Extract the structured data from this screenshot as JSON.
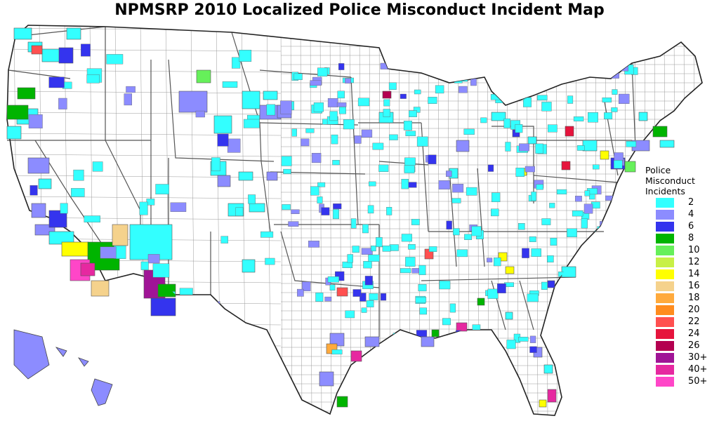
{
  "title": "NPMSRP 2010 Localized Police Misconduct Incident Map",
  "legend": {
    "title_lines": [
      "Police",
      "Misconduct",
      "Incidents"
    ],
    "items": [
      {
        "label": "2",
        "color": "#33ffff"
      },
      {
        "label": "4",
        "color": "#8c8cff"
      },
      {
        "label": "6",
        "color": "#3434ee"
      },
      {
        "label": "8",
        "color": "#00b400"
      },
      {
        "label": "10",
        "color": "#66f05a"
      },
      {
        "label": "12",
        "color": "#c8f046"
      },
      {
        "label": "14",
        "color": "#ffff00"
      },
      {
        "label": "16",
        "color": "#f5d28c"
      },
      {
        "label": "18",
        "color": "#ffaa3c"
      },
      {
        "label": "20",
        "color": "#ff8c1e"
      },
      {
        "label": "22",
        "color": "#ff5050"
      },
      {
        "label": "24",
        "color": "#e6143c"
      },
      {
        "label": "26",
        "color": "#b40050"
      },
      {
        "label": "30+",
        "color": "#a01496"
      },
      {
        "label": "40+",
        "color": "#e628a0"
      },
      {
        "label": "50+",
        "color": "#ff46c8"
      }
    ]
  },
  "map_style": {
    "land": "#ffffff",
    "border": "#555555",
    "county_line": "#9a9a9a"
  }
}
